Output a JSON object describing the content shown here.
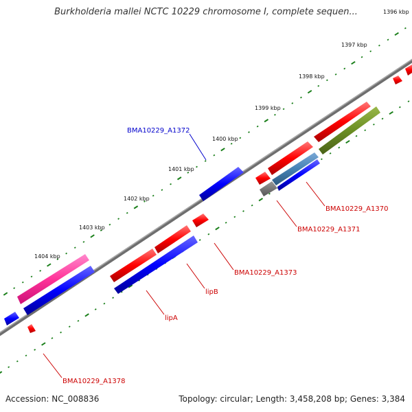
{
  "title": "Burkholderia mallei NCTC 10229 chromosome I, complete sequen...",
  "footer": {
    "accession": "Accession: NC_008836",
    "summary": "Topology: circular; Length: 3,458,208 bp; Genes: 3,384"
  },
  "kbp_labels": [
    "1396 kbp",
    "1397 kbp",
    "1398 kbp",
    "1399 kbp",
    "1400 kbp",
    "1401 kbp",
    "1402 kbp",
    "1403 kbp",
    "1404 kbp"
  ],
  "gene_labels": [
    {
      "text": "BMA10229_A1372",
      "color": "#0000cc"
    },
    {
      "text": "BMA10229_A1370",
      "color": "#cc0000"
    },
    {
      "text": "BMA10229_A1371",
      "color": "#cc0000"
    },
    {
      "text": "BMA10229_A1373",
      "color": "#cc0000"
    },
    {
      "text": "lipB",
      "color": "#cc0000"
    },
    {
      "text": "lipA",
      "color": "#cc0000"
    },
    {
      "text": "BMA10229_A1378",
      "color": "#cc0000"
    }
  ],
  "colors": {
    "backbone": "#808080",
    "tick": "#1a7f1a",
    "forward_cds": "#ff0000",
    "reverse_cds": "#0000ff",
    "rna": "#ff3399",
    "other_feature": "#6b8e23",
    "misc": "#777777",
    "misc_blue": "#4682b4"
  }
}
